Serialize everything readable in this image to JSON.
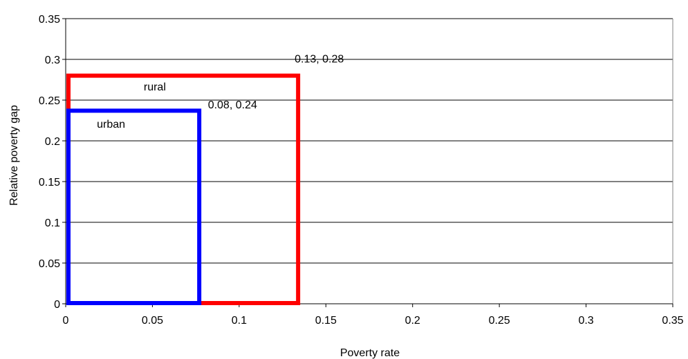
{
  "chart_data": {
    "type": "area",
    "xlabel": "Poverty rate",
    "ylabel": "Relative poverty gap",
    "xlim": [
      0,
      0.35
    ],
    "ylim": [
      0,
      0.35
    ],
    "x_ticks": [
      "0",
      "0.05",
      "0.1",
      "0.15",
      "0.2",
      "0.25",
      "0.3",
      "0.35"
    ],
    "y_ticks": [
      "0",
      "0.05",
      "0.1",
      "0.15",
      "0.2",
      "0.25",
      "0.3",
      "0.35"
    ],
    "grid": "horizontal",
    "legend": "none",
    "series": [
      {
        "name": "rural",
        "x": 0.134,
        "y": 0.28,
        "point_label": "0.13, 0.28",
        "color": "#ff0000"
      },
      {
        "name": "urban",
        "x": 0.077,
        "y": 0.237,
        "point_label": "0.08, 0.24",
        "color": "#0000ff"
      }
    ]
  }
}
